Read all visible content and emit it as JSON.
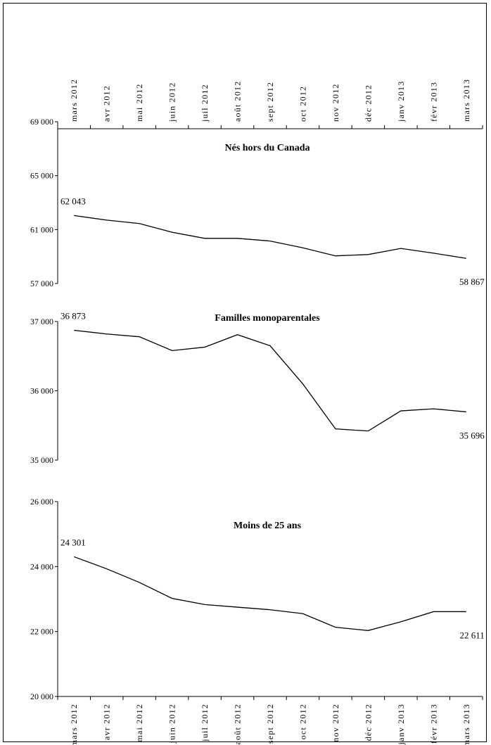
{
  "chart_data": {
    "type": "line",
    "categories": [
      "mars 2012",
      "avr 2012",
      "mai 2012",
      "juin 2012",
      "juil 2012",
      "août 2012",
      "sept 2012",
      "oct 2012",
      "nov 2012",
      "déc 2012",
      "janv 2013",
      "févr 2013",
      "mars 2013"
    ],
    "panels": [
      {
        "title": "Nés hors du Canada",
        "ylim": [
          57000,
          69000
        ],
        "yticks": [
          57000,
          61000,
          65000,
          69000
        ],
        "ytick_labels": [
          "57 000",
          "61 000",
          "65 000",
          "69 000"
        ],
        "values": [
          62043,
          61700,
          61450,
          60800,
          60350,
          60350,
          60150,
          59650,
          59050,
          59150,
          59600,
          59250,
          58867
        ],
        "first_label": "62 043",
        "last_label": "58 867"
      },
      {
        "title": "Familles monoparentales",
        "ylim": [
          35000,
          37000
        ],
        "yticks": [
          35000,
          36000,
          37000
        ],
        "ytick_labels": [
          "35 000",
          "36 000",
          "37 000"
        ],
        "values": [
          36873,
          36820,
          36780,
          36580,
          36630,
          36810,
          36650,
          36100,
          35450,
          35420,
          35710,
          35740,
          35696
        ],
        "first_label": "36 873",
        "last_label": "35 696"
      },
      {
        "title": "Moins de 25 ans",
        "ylim": [
          20000,
          26000
        ],
        "yticks": [
          20000,
          22000,
          24000,
          26000
        ],
        "ytick_labels": [
          "20 000",
          "22 000",
          "24 000",
          "26 000"
        ],
        "values": [
          24301,
          23930,
          23510,
          23020,
          22830,
          22750,
          22670,
          22550,
          22130,
          22030,
          22300,
          22611,
          22611
        ],
        "first_label": "24 301",
        "last_label": "22 611"
      }
    ]
  }
}
